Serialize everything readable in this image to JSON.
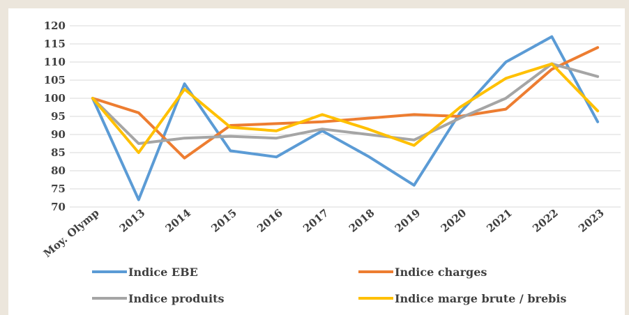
{
  "chart_data": {
    "type": "line",
    "title": "",
    "xlabel": "",
    "ylabel": "",
    "categories": [
      "Moy. Olymp",
      "2013",
      "2014",
      "2015",
      "2016",
      "2017",
      "2018",
      "2019",
      "2020",
      "2021",
      "2022",
      "2023"
    ],
    "y_ticks": [
      "70",
      "75",
      "80",
      "85",
      "90",
      "95",
      "100",
      "105",
      "110",
      "115",
      "120"
    ],
    "ylim": [
      70,
      120
    ],
    "grid": "horizontal",
    "legend_position": "bottom",
    "series": [
      {
        "name": "Indice EBE",
        "color": "#5b9bd5",
        "values": [
          100,
          72,
          104,
          85.5,
          83.8,
          91,
          84,
          76,
          96,
          110,
          117,
          93.5
        ]
      },
      {
        "name": "Indice charges",
        "color": "#ed7d31",
        "values": [
          100,
          96,
          83.5,
          92.5,
          93,
          93.5,
          94.5,
          95.5,
          95,
          97,
          108,
          114
        ]
      },
      {
        "name": "Indice produits",
        "color": "#a5a5a5",
        "values": [
          100,
          87.5,
          89,
          89.5,
          89,
          91.5,
          90,
          88.5,
          94.5,
          100,
          109.5,
          106
        ]
      },
      {
        "name": "Indice marge brute / brebis",
        "color": "#ffc000",
        "values": [
          100,
          85,
          102.5,
          92,
          91,
          95.5,
          91.5,
          87,
          97.5,
          105.5,
          109.5,
          96.5
        ]
      }
    ]
  }
}
